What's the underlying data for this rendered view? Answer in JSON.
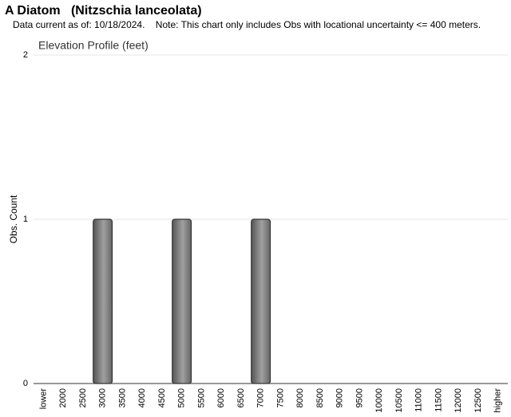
{
  "chart_data": {
    "type": "bar",
    "title": "A Diatom   (Nitzschia lanceolata)",
    "subtitle": "Data current as of: 10/18/2024.    Note: This chart only includes Obs with locational uncertainty <= 400 meters.",
    "chart_title": "Elevation Profile (feet)",
    "y_label": "Obs. Count",
    "categories": [
      "lower",
      "2000",
      "2500",
      "3000",
      "3500",
      "4000",
      "4500",
      "5000",
      "5500",
      "6000",
      "6500",
      "7000",
      "7500",
      "8000",
      "8500",
      "9000",
      "9500",
      "10000",
      "10500",
      "11000",
      "11500",
      "12000",
      "12500",
      "higher"
    ],
    "values": [
      0,
      0,
      0,
      1,
      0,
      0,
      0,
      1,
      0,
      0,
      0,
      1,
      0,
      0,
      0,
      0,
      0,
      0,
      0,
      0,
      0,
      0,
      0,
      0
    ],
    "color": "#a0a0a0",
    "ylim": [
      0,
      2
    ],
    "yticks": [
      0,
      1,
      2
    ],
    "grid": true
  }
}
